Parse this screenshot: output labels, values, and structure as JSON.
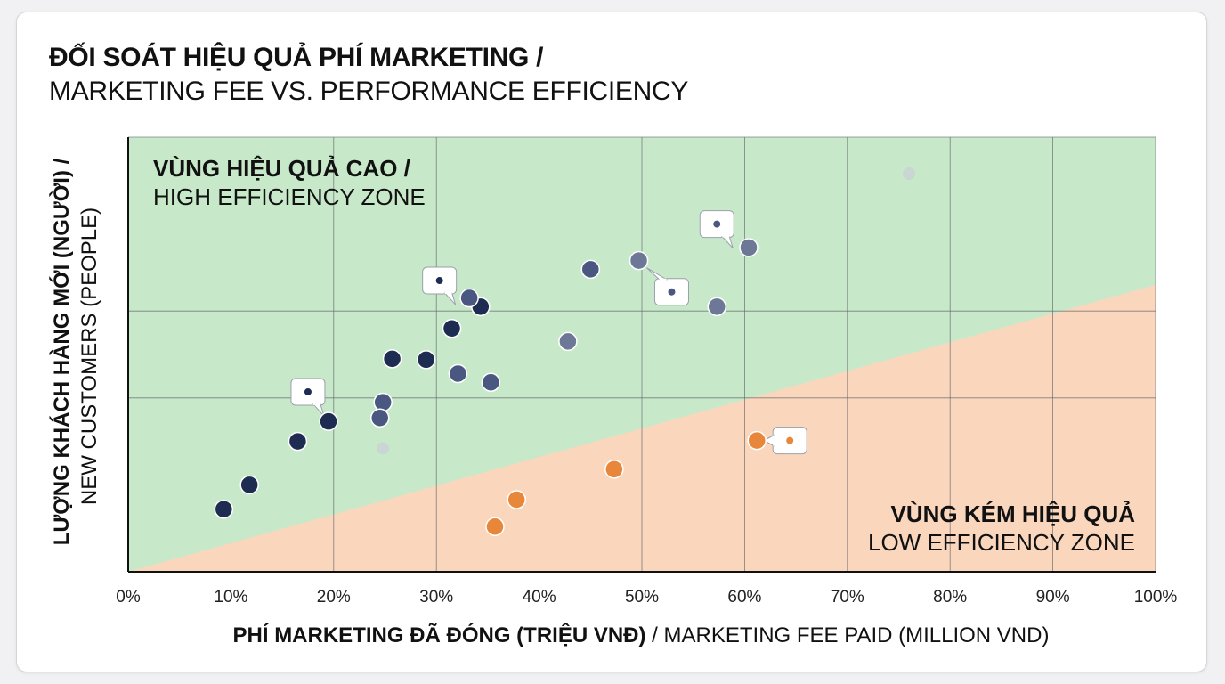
{
  "chart_data": {
    "type": "scatter",
    "title": "ĐỐI SOÁT HIỆU QUẢ PHÍ MARKETING /",
    "subtitle": "MARKETING FEE VS. PERFORMANCE EFFICIENCY",
    "xlabel_bold": "PHÍ MARKETING ĐÃ ĐÓNG (TRIỆU VNĐ)",
    "xlabel_rest": " / MARKETING FEE PAID (MILLION VND)",
    "ylabel_bold": "LƯỢNG KHÁCH HÀNG MỚI (NGƯỜI) /",
    "ylabel_rest": "NEW CUSTOMERS (PEOPLE)",
    "xlim": [
      0,
      100
    ],
    "ylim": [
      0,
      5
    ],
    "x_ticks": [
      0,
      10,
      20,
      30,
      40,
      50,
      60,
      70,
      80,
      90,
      100
    ],
    "x_tick_labels": [
      "0%",
      "10%",
      "20%",
      "30%",
      "40%",
      "50%",
      "60%",
      "70%",
      "80%",
      "90%",
      "100%"
    ],
    "y_gridlines": [
      1,
      2,
      3,
      4
    ],
    "grid": true,
    "zones": {
      "high": {
        "label_bold": "VÙNG HIỆU QUẢ CAO /",
        "label_rest": "HIGH EFFICIENCY ZONE",
        "color": "#c8e9c9"
      },
      "low": {
        "label_bold": "VÙNG KÉM HIỆU QUẢ",
        "label_rest": "LOW EFFICIENCY ZONE",
        "color": "#fad6bd"
      },
      "boundary": [
        [
          0,
          0
        ],
        [
          100,
          3.3
        ]
      ]
    },
    "series": [
      {
        "name": "high-efficiency-dark",
        "color": "#1f2c52",
        "points": [
          {
            "x": 9.3,
            "y": 0.72
          },
          {
            "x": 11.8,
            "y": 1.0
          },
          {
            "x": 16.5,
            "y": 1.5
          },
          {
            "x": 19.5,
            "y": 1.73
          },
          {
            "x": 25.7,
            "y": 2.45
          },
          {
            "x": 29.0,
            "y": 2.44
          },
          {
            "x": 34.3,
            "y": 3.05
          },
          {
            "x": 31.5,
            "y": 2.8
          }
        ]
      },
      {
        "name": "high-efficiency-medium",
        "color": "#4a5780",
        "points": [
          {
            "x": 24.8,
            "y": 1.95
          },
          {
            "x": 32.1,
            "y": 2.28
          },
          {
            "x": 33.2,
            "y": 3.15
          },
          {
            "x": 45.0,
            "y": 3.48
          },
          {
            "x": 24.5,
            "y": 1.77
          },
          {
            "x": 35.3,
            "y": 2.18
          }
        ]
      },
      {
        "name": "high-efficiency-light",
        "color": "#6d7896",
        "points": [
          {
            "x": 42.8,
            "y": 2.65
          },
          {
            "x": 49.7,
            "y": 3.58
          },
          {
            "x": 57.3,
            "y": 3.05
          },
          {
            "x": 60.4,
            "y": 3.73
          }
        ]
      },
      {
        "name": "low-efficiency",
        "color": "#e8873a",
        "points": [
          {
            "x": 35.7,
            "y": 0.52
          },
          {
            "x": 37.8,
            "y": 0.83
          },
          {
            "x": 47.3,
            "y": 1.18
          },
          {
            "x": 61.2,
            "y": 1.51
          }
        ]
      },
      {
        "name": "faded",
        "color": "#c9cdd8",
        "points": [
          {
            "x": 24.8,
            "y": 1.42
          },
          {
            "x": 76.0,
            "y": 4.58
          }
        ]
      }
    ],
    "callouts": [
      {
        "x": 17.5,
        "y": 2.07,
        "tail": "down-right",
        "color": "#1f2c52"
      },
      {
        "x": 30.3,
        "y": 3.35,
        "tail": "down-right",
        "color": "#1f2c52"
      },
      {
        "x": 57.3,
        "y": 4.0,
        "tail": "down-right",
        "color": "#4a5780"
      },
      {
        "x": 52.9,
        "y": 3.22,
        "tail": "up-left",
        "color": "#4a5780"
      },
      {
        "x": 64.4,
        "y": 1.51,
        "tail": "left",
        "color": "#e8873a"
      }
    ]
  }
}
